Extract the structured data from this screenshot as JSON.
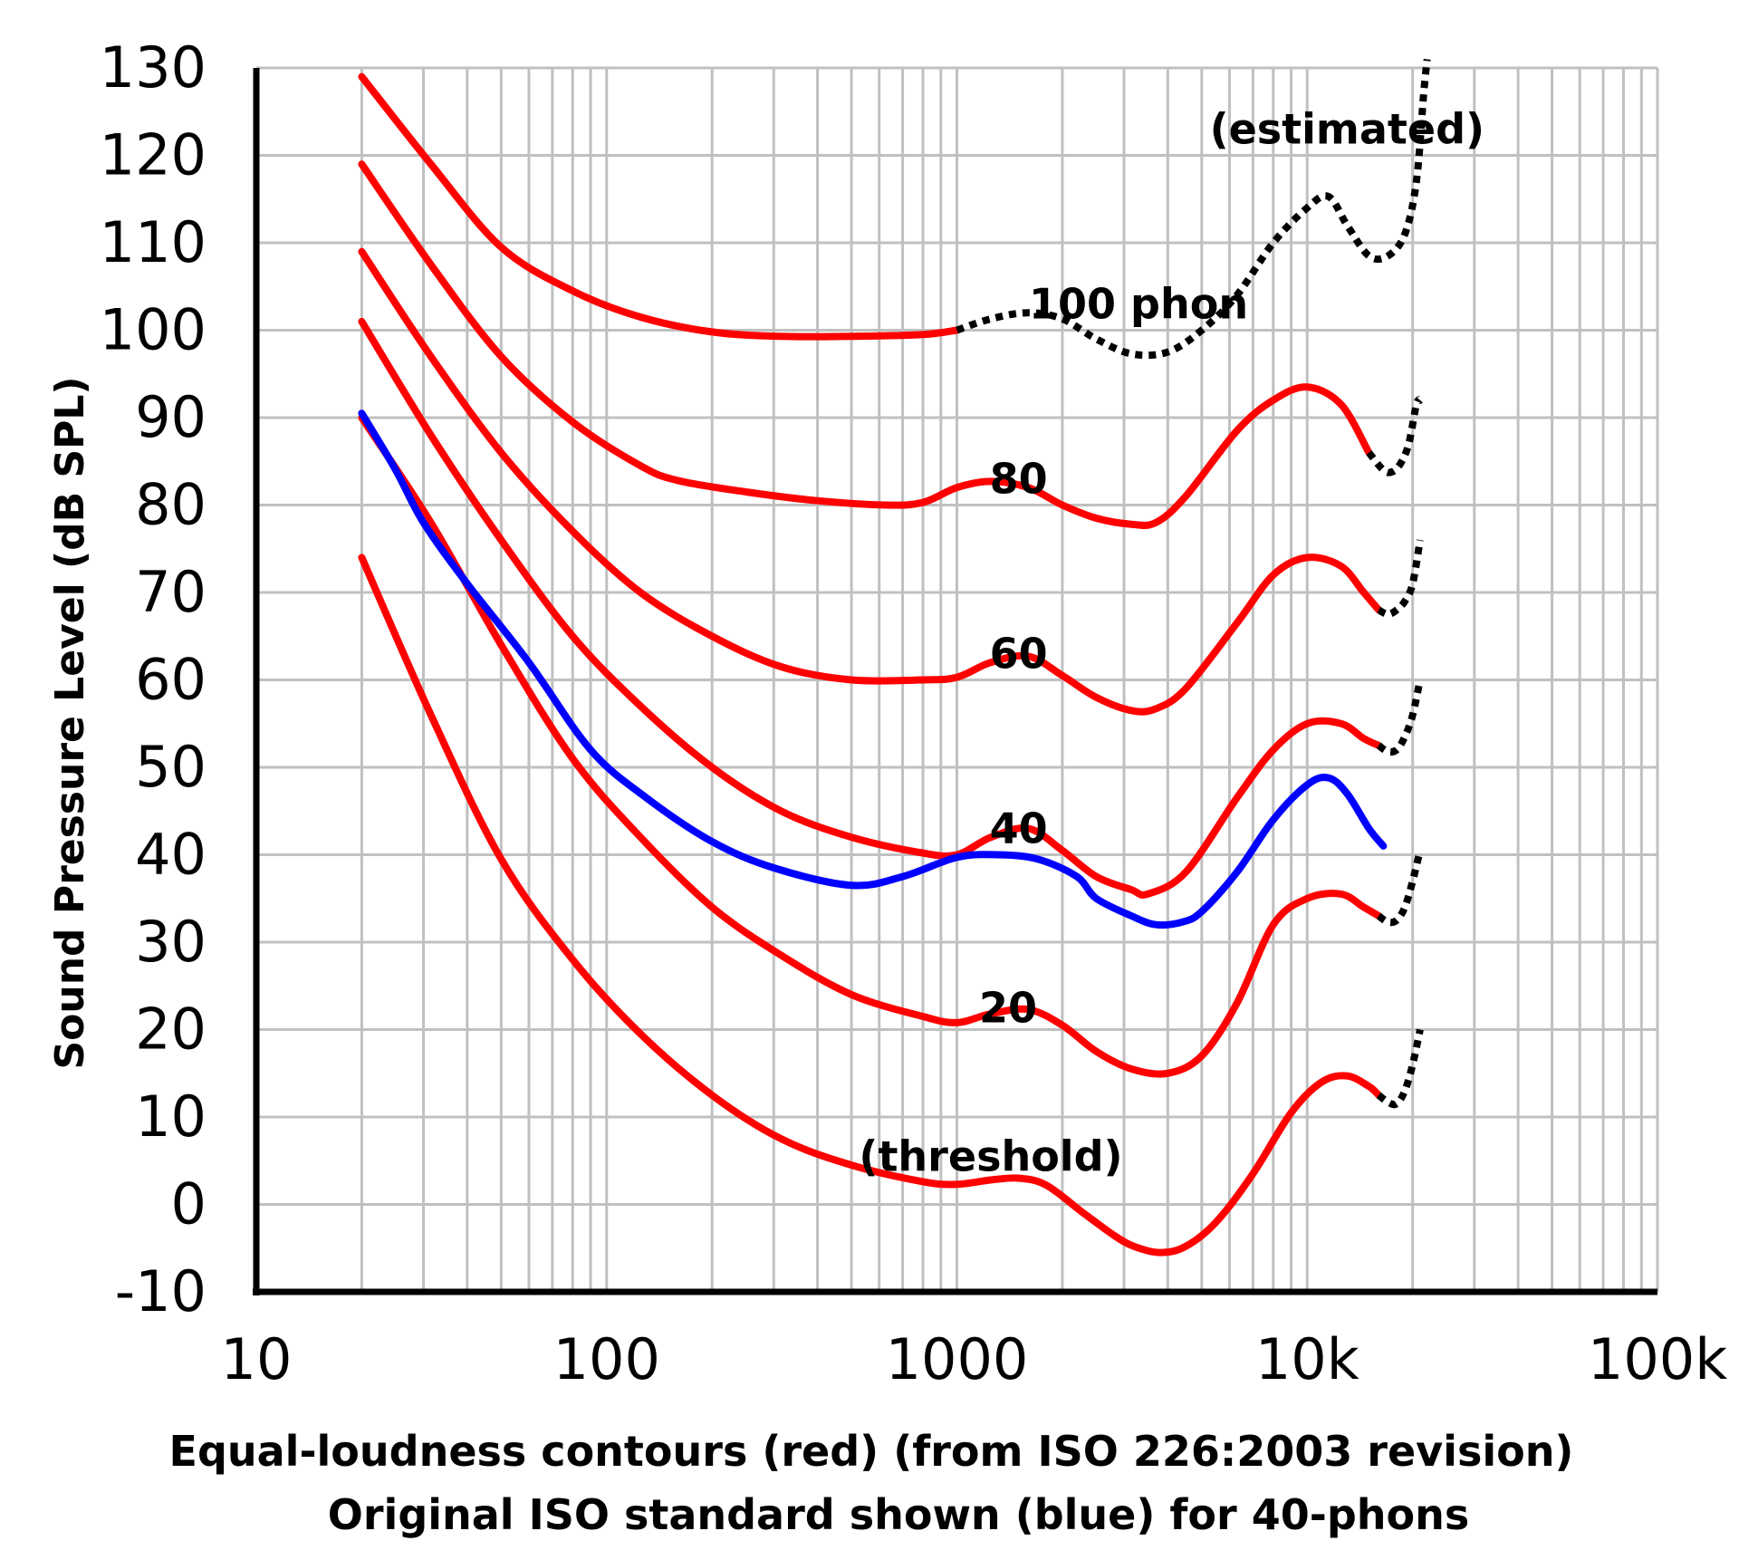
{
  "chart_data": {
    "type": "line",
    "x_scale": "log",
    "xlim": [
      10,
      100000
    ],
    "ylim": [
      -10,
      130
    ],
    "grid": true,
    "x_ticks": [
      {
        "value": 10,
        "label": "10"
      },
      {
        "value": 100,
        "label": "100"
      },
      {
        "value": 1000,
        "label": "1000"
      },
      {
        "value": 10000,
        "label": "10k"
      },
      {
        "value": 100000,
        "label": "100k"
      }
    ],
    "y_ticks": [
      130,
      120,
      110,
      100,
      90,
      80,
      70,
      60,
      50,
      40,
      30,
      20,
      10,
      0,
      -10
    ],
    "ylabel": "Sound Pressure Level (dB SPL)",
    "caption_line1": "Equal-loudness contours (red) (from ISO 226:2003 revision)",
    "caption_line2": "Original ISO standard shown (blue) for 40-phons",
    "colors": {
      "iso2003": "#ff0000",
      "original": "#0000ff",
      "estimated": "#000000",
      "grid": "#c0c0c0"
    },
    "annotations": [
      {
        "text": "(estimated)",
        "x": 13000,
        "y": 123
      },
      {
        "text": "100 phon",
        "x": 3300,
        "y": 103
      },
      {
        "text": "80",
        "x": 1500,
        "y": 83
      },
      {
        "text": "60",
        "x": 1500,
        "y": 63
      },
      {
        "text": "40",
        "x": 1500,
        "y": 43
      },
      {
        "text": "20",
        "x": 1400,
        "y": 22.5
      },
      {
        "text": "(threshold)",
        "x": 1250,
        "y": 5.5
      }
    ],
    "series": [
      {
        "name": "100 phon",
        "style": "red",
        "points": [
          [
            20,
            129
          ],
          [
            31.5,
            119
          ],
          [
            50,
            109.5
          ],
          [
            80,
            104.5
          ],
          [
            125,
            101.5
          ],
          [
            200,
            99.8
          ],
          [
            315,
            99.3
          ],
          [
            500,
            99.3
          ],
          [
            800,
            99.5
          ],
          [
            1000,
            100
          ]
        ]
      },
      {
        "name": "100 phon (estimated)",
        "style": "dotted",
        "points": [
          [
            1000,
            100
          ],
          [
            1250,
            101.3
          ],
          [
            1600,
            102
          ],
          [
            2000,
            101.3
          ],
          [
            2500,
            99
          ],
          [
            3150,
            97.3
          ],
          [
            4000,
            97.5
          ],
          [
            5000,
            100
          ],
          [
            6300,
            104
          ],
          [
            8000,
            110
          ],
          [
            10000,
            114
          ],
          [
            11500,
            115.3
          ],
          [
            13000,
            112
          ],
          [
            15000,
            108.5
          ],
          [
            17000,
            108.5
          ],
          [
            19000,
            111
          ],
          [
            20500,
            117
          ],
          [
            21500,
            127
          ],
          [
            22000,
            131
          ]
        ]
      },
      {
        "name": "80 phon",
        "style": "red",
        "points": [
          [
            20,
            119
          ],
          [
            31.5,
            107.5
          ],
          [
            50,
            97
          ],
          [
            80,
            89.5
          ],
          [
            125,
            84.5
          ],
          [
            160,
            82.8
          ],
          [
            250,
            81.5
          ],
          [
            400,
            80.5
          ],
          [
            630,
            80
          ],
          [
            800,
            80.3
          ],
          [
            1000,
            82
          ],
          [
            1250,
            82.7
          ],
          [
            1600,
            82
          ],
          [
            2000,
            80
          ],
          [
            2500,
            78.5
          ],
          [
            3150,
            77.8
          ],
          [
            3700,
            78
          ],
          [
            4500,
            81
          ],
          [
            6300,
            88.5
          ],
          [
            8000,
            92
          ],
          [
            10000,
            93.5
          ],
          [
            12500,
            91.5
          ],
          [
            15000,
            86
          ]
        ]
      },
      {
        "name": "80 phon (estimated)",
        "style": "dotted",
        "points": [
          [
            15000,
            86
          ],
          [
            16500,
            84
          ],
          [
            17500,
            83.8
          ],
          [
            18500,
            84.8
          ],
          [
            19500,
            87
          ],
          [
            20500,
            91.5
          ],
          [
            21000,
            92
          ]
        ]
      },
      {
        "name": "60 phon",
        "style": "red",
        "points": [
          [
            20,
            109
          ],
          [
            31.5,
            97
          ],
          [
            50,
            86
          ],
          [
            80,
            77
          ],
          [
            125,
            70
          ],
          [
            200,
            65
          ],
          [
            315,
            61.5
          ],
          [
            500,
            60
          ],
          [
            800,
            60
          ],
          [
            1000,
            60.3
          ],
          [
            1250,
            62
          ],
          [
            1600,
            62.7
          ],
          [
            2000,
            60.5
          ],
          [
            2500,
            58
          ],
          [
            3150,
            56.5
          ],
          [
            3700,
            56.7
          ],
          [
            4500,
            59
          ],
          [
            6300,
            66.5
          ],
          [
            8000,
            72
          ],
          [
            10000,
            74
          ],
          [
            12500,
            73
          ],
          [
            14500,
            70
          ],
          [
            16000,
            68
          ]
        ]
      },
      {
        "name": "60 phon (estimated)",
        "style": "dotted",
        "points": [
          [
            16000,
            68
          ],
          [
            17000,
            67.5
          ],
          [
            18000,
            68
          ],
          [
            19000,
            69
          ],
          [
            20000,
            71
          ],
          [
            21000,
            76
          ]
        ]
      },
      {
        "name": "40 phon",
        "style": "red",
        "points": [
          [
            20,
            101
          ],
          [
            31.5,
            88
          ],
          [
            50,
            76
          ],
          [
            80,
            65
          ],
          [
            125,
            57
          ],
          [
            200,
            50
          ],
          [
            315,
            45
          ],
          [
            500,
            42
          ],
          [
            800,
            40.2
          ],
          [
            1000,
            40
          ],
          [
            1250,
            42
          ],
          [
            1600,
            43
          ],
          [
            2000,
            40.5
          ],
          [
            2500,
            37.5
          ],
          [
            3150,
            36
          ],
          [
            3500,
            35.5
          ],
          [
            4500,
            38
          ],
          [
            6300,
            46.5
          ],
          [
            8000,
            52
          ],
          [
            10000,
            55
          ],
          [
            12500,
            55
          ],
          [
            14500,
            53.3
          ],
          [
            16000,
            52.5
          ]
        ]
      },
      {
        "name": "40 phon (estimated)",
        "style": "dotted",
        "points": [
          [
            16000,
            52.5
          ],
          [
            17000,
            51.8
          ],
          [
            18000,
            52
          ],
          [
            19000,
            53.5
          ],
          [
            20000,
            56
          ],
          [
            21000,
            60
          ]
        ]
      },
      {
        "name": "40 phon (original ISO)",
        "style": "blue",
        "points": [
          [
            20,
            90.5
          ],
          [
            25,
            84
          ],
          [
            30,
            78
          ],
          [
            40,
            71
          ],
          [
            60,
            62
          ],
          [
            90,
            52
          ],
          [
            130,
            46.5
          ],
          [
            200,
            41.5
          ],
          [
            300,
            38.5
          ],
          [
            500,
            36.5
          ],
          [
            700,
            37.5
          ],
          [
            1000,
            39.7
          ],
          [
            1300,
            40
          ],
          [
            1700,
            39.5
          ],
          [
            2200,
            37.5
          ],
          [
            2500,
            35
          ],
          [
            3150,
            33
          ],
          [
            3700,
            32
          ],
          [
            4400,
            32.3
          ],
          [
            5000,
            33.5
          ],
          [
            6300,
            38
          ],
          [
            8000,
            44
          ],
          [
            10000,
            48
          ],
          [
            11500,
            48.8
          ],
          [
            13000,
            47
          ],
          [
            15000,
            43
          ],
          [
            16500,
            41
          ]
        ]
      },
      {
        "name": "20 phon",
        "style": "red",
        "points": [
          [
            20,
            90
          ],
          [
            31.5,
            78
          ],
          [
            50,
            64
          ],
          [
            80,
            51
          ],
          [
            125,
            42
          ],
          [
            200,
            34
          ],
          [
            315,
            28.5
          ],
          [
            500,
            24
          ],
          [
            800,
            21.5
          ],
          [
            1000,
            20.8
          ],
          [
            1250,
            21.8
          ],
          [
            1600,
            22.3
          ],
          [
            2000,
            20.5
          ],
          [
            2500,
            17.5
          ],
          [
            3150,
            15.5
          ],
          [
            4000,
            15
          ],
          [
            5000,
            17
          ],
          [
            6300,
            23
          ],
          [
            8000,
            32
          ],
          [
            10000,
            35
          ],
          [
            12500,
            35.5
          ],
          [
            14500,
            34
          ],
          [
            16000,
            33
          ]
        ]
      },
      {
        "name": "20 phon (estimated)",
        "style": "dotted",
        "points": [
          [
            16000,
            33
          ],
          [
            17000,
            32.3
          ],
          [
            18000,
            32.5
          ],
          [
            19000,
            34
          ],
          [
            20000,
            37
          ],
          [
            21000,
            40.5
          ]
        ]
      },
      {
        "name": "threshold",
        "style": "red",
        "points": [
          [
            20,
            74
          ],
          [
            31.5,
            56
          ],
          [
            50,
            39.5
          ],
          [
            80,
            28
          ],
          [
            125,
            19.5
          ],
          [
            200,
            12.5
          ],
          [
            315,
            7.5
          ],
          [
            500,
            4.5
          ],
          [
            800,
            2.6
          ],
          [
            1000,
            2.3
          ],
          [
            1250,
            2.8
          ],
          [
            1500,
            3
          ],
          [
            1800,
            2.2
          ],
          [
            2300,
            -1
          ],
          [
            2800,
            -3.5
          ],
          [
            3200,
            -4.8
          ],
          [
            3800,
            -5.5
          ],
          [
            4500,
            -4.8
          ],
          [
            5500,
            -2
          ],
          [
            7000,
            3.5
          ],
          [
            9000,
            10.5
          ],
          [
            11000,
            14
          ],
          [
            13000,
            14.7
          ],
          [
            15000,
            13.5
          ],
          [
            16000,
            12.5
          ]
        ]
      },
      {
        "name": "threshold (estimated)",
        "style": "dotted",
        "points": [
          [
            16000,
            12.5
          ],
          [
            17000,
            11.7
          ],
          [
            18000,
            11.5
          ],
          [
            19000,
            13
          ],
          [
            20000,
            16
          ],
          [
            21000,
            20
          ]
        ]
      }
    ]
  }
}
